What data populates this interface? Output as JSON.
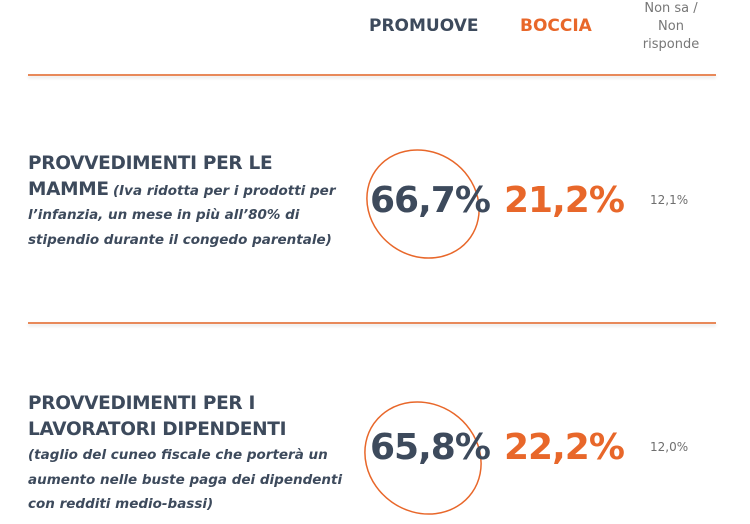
{
  "header": {
    "promuove": "PROMUOVE",
    "boccia": "BOCCIA",
    "non_sa": [
      "Non sa /",
      "Non",
      "risponde"
    ]
  },
  "colors": {
    "dark": "#3d4a5c",
    "accent": "#e8672a",
    "muted": "#6f6f6f"
  },
  "rows": [
    {
      "title_bold_1": "PROVVEDIMENTI PER LE",
      "title_bold_2": "MAMME",
      "description": "(Iva ridotta per i prodotti per l’infanzia, un mese in più all’80% di stipendio durante il congedo parentale)",
      "promuove": "66,7%",
      "boccia": "21,2%",
      "non_sa": "12,1%"
    },
    {
      "title_bold_1": "PROVVEDIMENTI PER I",
      "title_bold_2": "LAVORATORI DIPENDENTI",
      "description": "(taglio del cuneo fiscale che porterà un aumento nelle buste paga dei dipendenti con redditi medio-bassi)",
      "promuove": "65,8%",
      "boccia": "22,2%",
      "non_sa": "12,0%"
    }
  ]
}
